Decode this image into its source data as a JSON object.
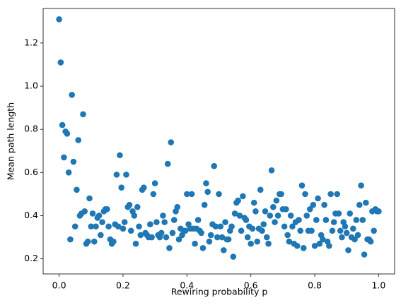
{
  "chart_data": {
    "type": "scatter",
    "x_label": "Rewiring probability p",
    "y_label": "Mean path length",
    "color": "#1f77b4",
    "xlim": [
      -0.05,
      1.05
    ],
    "ylim": [
      0.13,
      1.36
    ],
    "xticks": [
      {
        "value": 0,
        "label": "0.0"
      },
      0.2,
      0.4,
      0.6,
      0.8,
      {
        "value": 1,
        "label": "1.0"
      }
    ],
    "yticks": [
      0.2,
      0.4,
      0.6,
      0.8,
      {
        "value": 1,
        "label": "1.0"
      },
      1.2
    ],
    "x": [
      0,
      0.005,
      0.01,
      0.015,
      0.02,
      0.025,
      0.03,
      0.035,
      0.04,
      0.045,
      0.05,
      0.055,
      0.06,
      0.065,
      0.07,
      0.075,
      0.08,
      0.085,
      0.09,
      0.095,
      0.1,
      0.105,
      0.11,
      0.115,
      0.12,
      0.125,
      0.13,
      0.135,
      0.14,
      0.145,
      0.15,
      0.155,
      0.16,
      0.165,
      0.17,
      0.175,
      0.18,
      0.185,
      0.19,
      0.195,
      0.2,
      0.205,
      0.21,
      0.215,
      0.22,
      0.225,
      0.23,
      0.235,
      0.24,
      0.245,
      0.25,
      0.255,
      0.26,
      0.265,
      0.27,
      0.275,
      0.28,
      0.285,
      0.29,
      0.295,
      0.3,
      0.305,
      0.31,
      0.315,
      0.32,
      0.325,
      0.33,
      0.335,
      0.34,
      0.345,
      0.35,
      0.355,
      0.36,
      0.365,
      0.37,
      0.375,
      0.38,
      0.385,
      0.39,
      0.395,
      0.4,
      0.405,
      0.41,
      0.415,
      0.42,
      0.425,
      0.43,
      0.435,
      0.44,
      0.445,
      0.45,
      0.455,
      0.46,
      0.465,
      0.47,
      0.475,
      0.48,
      0.485,
      0.49,
      0.495,
      0.5,
      0.505,
      0.51,
      0.515,
      0.52,
      0.525,
      0.53,
      0.535,
      0.54,
      0.545,
      0.55,
      0.555,
      0.56,
      0.565,
      0.57,
      0.575,
      0.58,
      0.585,
      0.59,
      0.595,
      0.6,
      0.605,
      0.61,
      0.615,
      0.62,
      0.625,
      0.63,
      0.635,
      0.64,
      0.645,
      0.65,
      0.655,
      0.66,
      0.665,
      0.67,
      0.675,
      0.68,
      0.685,
      0.69,
      0.695,
      0.7,
      0.705,
      0.71,
      0.715,
      0.72,
      0.725,
      0.73,
      0.735,
      0.74,
      0.745,
      0.75,
      0.755,
      0.76,
      0.765,
      0.77,
      0.775,
      0.78,
      0.785,
      0.79,
      0.795,
      0.8,
      0.805,
      0.81,
      0.815,
      0.82,
      0.825,
      0.83,
      0.835,
      0.84,
      0.845,
      0.85,
      0.855,
      0.86,
      0.865,
      0.87,
      0.875,
      0.88,
      0.885,
      0.89,
      0.895,
      0.9,
      0.905,
      0.91,
      0.915,
      0.92,
      0.925,
      0.93,
      0.935,
      0.94,
      0.945,
      0.95,
      0.955,
      0.96,
      0.965,
      0.97,
      0.975,
      0.98,
      0.985,
      0.99,
      0.995,
      1.0
    ],
    "values": [
      1.31,
      1.11,
      0.82,
      0.67,
      0.79,
      0.78,
      0.6,
      0.29,
      0.96,
      0.65,
      0.35,
      0.52,
      0.75,
      0.4,
      0.41,
      0.87,
      0.42,
      0.27,
      0.28,
      0.48,
      0.35,
      0.41,
      0.28,
      0.35,
      0.39,
      0.4,
      0.31,
      0.37,
      0.42,
      0.43,
      0.43,
      0.35,
      0.29,
      0.27,
      0.28,
      0.36,
      0.59,
      0.35,
      0.68,
      0.53,
      0.34,
      0.37,
      0.59,
      0.44,
      0.45,
      0.33,
      0.42,
      0.4,
      0.27,
      0.44,
      0.35,
      0.31,
      0.52,
      0.53,
      0.32,
      0.31,
      0.3,
      0.36,
      0.3,
      0.5,
      0.55,
      0.37,
      0.31,
      0.3,
      0.32,
      0.4,
      0.37,
      0.3,
      0.64,
      0.25,
      0.74,
      0.32,
      0.38,
      0.42,
      0.44,
      0.29,
      0.34,
      0.31,
      0.33,
      0.33,
      0.5,
      0.36,
      0.34,
      0.5,
      0.34,
      0.27,
      0.34,
      0.38,
      0.33,
      0.32,
      0.25,
      0.45,
      0.55,
      0.51,
      0.28,
      0.31,
      0.36,
      0.63,
      0.35,
      0.3,
      0.5,
      0.35,
      0.3,
      0.24,
      0.37,
      0.29,
      0.29,
      0.33,
      0.35,
      0.21,
      0.41,
      0.46,
      0.47,
      0.4,
      0.33,
      0.49,
      0.39,
      0.38,
      0.3,
      0.35,
      0.27,
      0.34,
      0.46,
      0.42,
      0.28,
      0.34,
      0.52,
      0.33,
      0.36,
      0.42,
      0.3,
      0.27,
      0.4,
      0.61,
      0.44,
      0.37,
      0.47,
      0.4,
      0.5,
      0.5,
      0.43,
      0.35,
      0.43,
      0.31,
      0.28,
      0.4,
      0.35,
      0.27,
      0.37,
      0.26,
      0.38,
      0.33,
      0.54,
      0.25,
      0.5,
      0.4,
      0.33,
      0.43,
      0.33,
      0.45,
      0.26,
      0.38,
      0.48,
      0.27,
      0.31,
      0.29,
      0.45,
      0.38,
      0.28,
      0.26,
      0.5,
      0.33,
      0.37,
      0.41,
      0.5,
      0.41,
      0.33,
      0.3,
      0.37,
      0.35,
      0.32,
      0.24,
      0.41,
      0.3,
      0.34,
      0.29,
      0.38,
      0.31,
      0.45,
      0.54,
      0.38,
      0.22,
      0.46,
      0.29,
      0.29,
      0.28,
      0.42,
      0.33,
      0.43,
      0.42,
      0.42
    ]
  }
}
